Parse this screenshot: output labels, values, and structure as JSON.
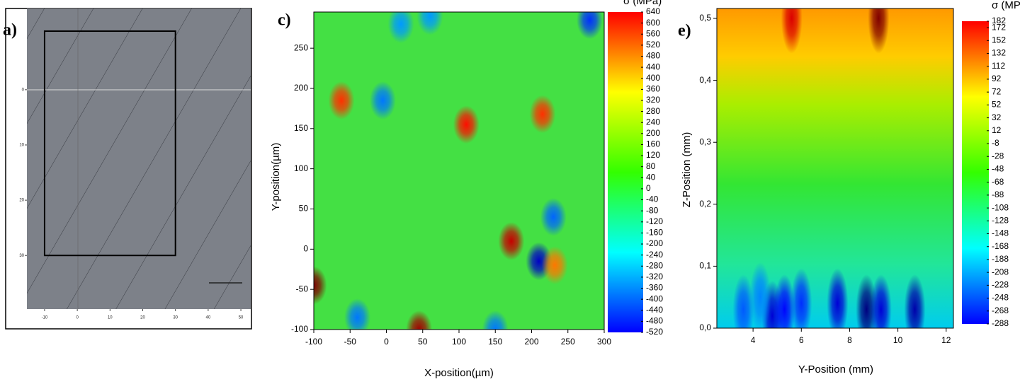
{
  "chart_data": [
    {
      "type": "image",
      "label": "a)",
      "xlim": [
        -15.4,
        52.8
      ],
      "xticks": [
        -10,
        0,
        10,
        20,
        30,
        40,
        50
      ],
      "ylim": [
        -14.7,
        39.7
      ],
      "yticks": [
        0,
        10,
        20,
        30
      ],
      "roi": {
        "x": [
          -10,
          30
        ],
        "y": [
          -10.6,
          30
        ]
      }
    },
    {
      "type": "contour",
      "label": "c)",
      "colorbar_title": "σ (MPa)",
      "xlabel": "X-position(µm)",
      "ylabel": "Y-position(µm)",
      "xlim": [
        -100,
        300
      ],
      "xticks": [
        -100,
        -50,
        0,
        50,
        100,
        150,
        200,
        250,
        300
      ],
      "ylim": [
        -100,
        295
      ],
      "yticks": [
        -100,
        -50,
        0,
        50,
        100,
        150,
        200,
        250
      ],
      "clim": [
        -520,
        640
      ],
      "cticks": [
        640,
        600,
        560,
        520,
        480,
        440,
        400,
        360,
        320,
        280,
        240,
        200,
        160,
        120,
        80,
        40,
        0,
        -40,
        -80,
        -120,
        -160,
        -200,
        -240,
        -280,
        -320,
        -360,
        -400,
        -440,
        -480,
        -520
      ],
      "points": {
        "x": [
          -62,
          110,
          215,
          172,
          -100,
          45,
          210,
          232,
          60,
          -5,
          20,
          150,
          280,
          230,
          -40
        ],
        "y": [
          185,
          155,
          168,
          10,
          -45,
          -100,
          -15,
          -20,
          290,
          185,
          280,
          -100,
          285,
          40,
          -85
        ],
        "values": [
          440,
          480,
          440,
          560,
          640,
          600,
          -440,
          360,
          -200,
          -240,
          -200,
          -240,
          -320,
          -260,
          -240
        ]
      }
    },
    {
      "type": "contour",
      "label": "e)",
      "colorbar_title": "σ (MPa)",
      "xlabel": "Y-Position (mm)",
      "ylabel": "Z-Position (mm)",
      "xlim": [
        2.5,
        12.3
      ],
      "xticks": [
        4,
        6,
        8,
        10,
        12
      ],
      "ylim": [
        0,
        0.516
      ],
      "yticks": [
        {
          "value": 0,
          "label": "0,0"
        },
        {
          "value": 0.1,
          "label": "0,1"
        },
        {
          "value": 0.2,
          "label": "0,2"
        },
        {
          "value": 0.3,
          "label": "0,3"
        },
        {
          "value": 0.4,
          "label": "0,4"
        },
        {
          "value": 0.5,
          "label": "0,5"
        }
      ],
      "clim": [
        -288,
        182
      ],
      "cticks": [
        182,
        172,
        152,
        132,
        112,
        92,
        72,
        52,
        32,
        12,
        -8,
        -28,
        -48,
        -68,
        -88,
        -108,
        -128,
        -148,
        -168,
        -188,
        -208,
        -228,
        -248,
        -268,
        -288
      ],
      "points": {
        "x": [
          5.6,
          9.2,
          4.8,
          5.3,
          6.0,
          7.5,
          8.7,
          10.7,
          3.6,
          4.3,
          9.3
        ],
        "y": [
          0.5,
          0.5,
          0.02,
          0.03,
          0.04,
          0.04,
          0.03,
          0.03,
          0.03,
          0.05,
          0.03
        ],
        "values": [
          140,
          182,
          -248,
          -228,
          -208,
          -248,
          -288,
          -268,
          -188,
          -168,
          -248
        ]
      }
    }
  ]
}
